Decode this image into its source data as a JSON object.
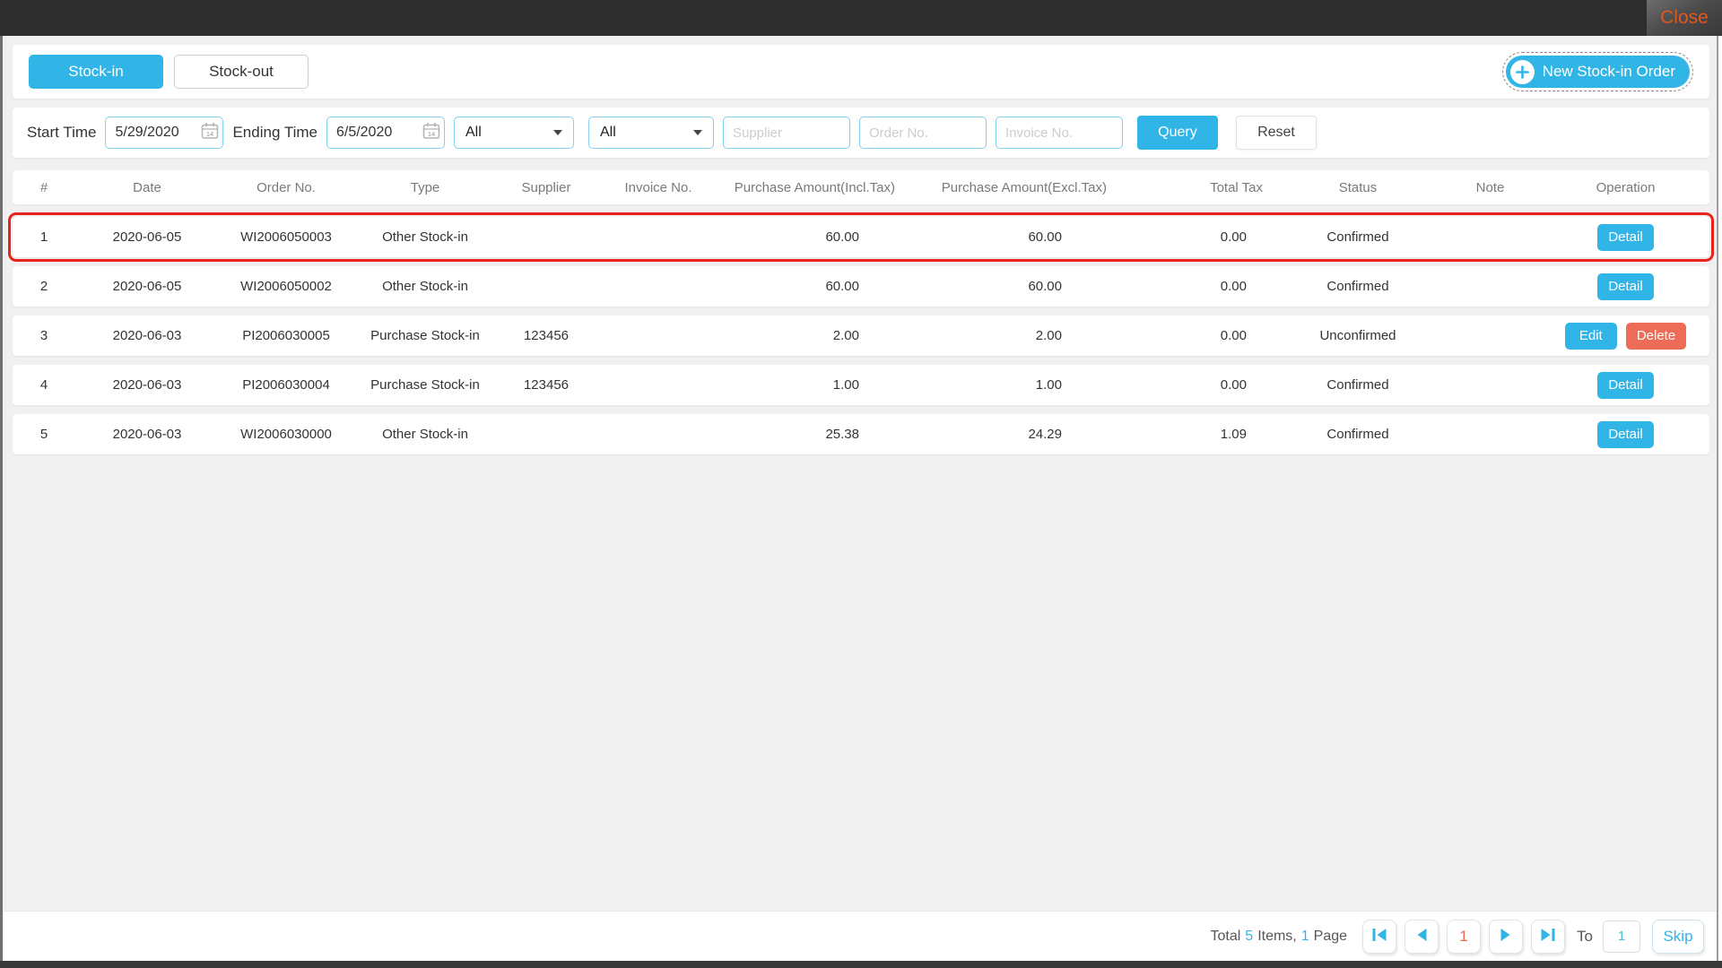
{
  "titlebar": {
    "close_label": "Close"
  },
  "tabs": {
    "stock_in": "Stock-in",
    "stock_out": "Stock-out"
  },
  "actions": {
    "new_order_label": "New Stock-in Order"
  },
  "filters": {
    "start_time_label": "Start Time",
    "start_time_value": "5/29/2020",
    "ending_time_label": "Ending Time",
    "ending_time_value": "6/5/2020",
    "type_filter_value": "All",
    "status_filter_value": "All",
    "supplier_placeholder": "Supplier",
    "order_no_placeholder": "Order No.",
    "invoice_no_placeholder": "Invoice No.",
    "query_label": "Query",
    "reset_label": "Reset"
  },
  "table": {
    "columns": [
      "#",
      "Date",
      "Order No.",
      "Type",
      "Supplier",
      "Invoice No.",
      "Purchase Amount(Incl.Tax)",
      "Purchase Amount(Excl.Tax)",
      "Total Tax",
      "Status",
      "Note",
      "Operation"
    ],
    "rows": [
      {
        "index": "1",
        "date": "2020-06-05",
        "order_no": "WI2006050003",
        "type": "Other Stock-in",
        "supplier": "",
        "invoice_no": "",
        "amount_incl": "60.00",
        "amount_excl": "60.00",
        "total_tax": "0.00",
        "status": "Confirmed",
        "note": "",
        "actions": [
          "Detail"
        ],
        "highlighted": true
      },
      {
        "index": "2",
        "date": "2020-06-05",
        "order_no": "WI2006050002",
        "type": "Other Stock-in",
        "supplier": "",
        "invoice_no": "",
        "amount_incl": "60.00",
        "amount_excl": "60.00",
        "total_tax": "0.00",
        "status": "Confirmed",
        "note": "",
        "actions": [
          "Detail"
        ],
        "highlighted": false
      },
      {
        "index": "3",
        "date": "2020-06-03",
        "order_no": "PI2006030005",
        "type": "Purchase Stock-in",
        "supplier": "123456",
        "invoice_no": "",
        "amount_incl": "2.00",
        "amount_excl": "2.00",
        "total_tax": "0.00",
        "status": "Unconfirmed",
        "note": "",
        "actions": [
          "Edit",
          "Delete"
        ],
        "highlighted": false
      },
      {
        "index": "4",
        "date": "2020-06-03",
        "order_no": "PI2006030004",
        "type": "Purchase Stock-in",
        "supplier": "123456",
        "invoice_no": "",
        "amount_incl": "1.00",
        "amount_excl": "1.00",
        "total_tax": "0.00",
        "status": "Confirmed",
        "note": "",
        "actions": [
          "Detail"
        ],
        "highlighted": false
      },
      {
        "index": "5",
        "date": "2020-06-03",
        "order_no": "WI2006030000",
        "type": "Other Stock-in",
        "supplier": "",
        "invoice_no": "",
        "amount_incl": "25.38",
        "amount_excl": "24.29",
        "total_tax": "1.09",
        "status": "Confirmed",
        "note": "",
        "actions": [
          "Detail"
        ],
        "highlighted": false
      }
    ]
  },
  "pagination": {
    "total_label": "Total",
    "total_count": "5",
    "items_label": "Items,",
    "page_count": "1",
    "page_label": "Page",
    "current_page": "1",
    "to_label": "To",
    "goto_value": "1",
    "skip_label": "Skip"
  },
  "colors": {
    "accent_blue": "#31b5e6",
    "danger_red": "#ec6c57",
    "highlight_border": "#e8231c",
    "close_text": "#e2571e",
    "current_page_number": "#f0654a",
    "titlebar_bg": "#2d2d2d",
    "page_bg": "#f0f0f0"
  }
}
